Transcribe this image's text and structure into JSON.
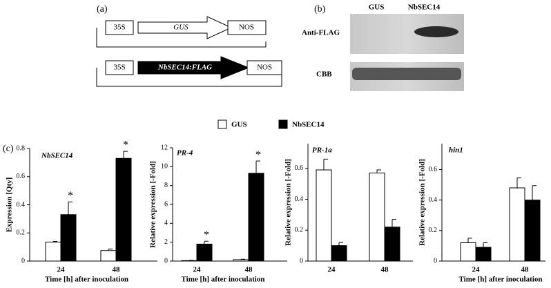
{
  "panel_a": {
    "label": "(a)",
    "constructs": [
      {
        "promoter": "35S",
        "gene": "GUS",
        "terminator": "NOS"
      },
      {
        "promoter": "35S",
        "gene": "NbSEC14:FLAG",
        "terminator": "NOS"
      }
    ]
  },
  "panel_b": {
    "label": "(b)",
    "lanes": [
      "GUS",
      "NbSEC14"
    ],
    "rows": [
      "Anti-FLAG",
      "CBB"
    ]
  },
  "panel_c": {
    "label": "(c)"
  },
  "chart_data": [
    {
      "type": "bar",
      "title": "NbSEC14",
      "ylabel": "Expression [Qty]",
      "xlabel": "Time [h] after inoculation",
      "categories": [
        "24",
        "48"
      ],
      "ylim": [
        0,
        0.8
      ],
      "yticks": [
        0,
        0.2,
        0.4,
        0.6,
        0.8
      ],
      "series": [
        {
          "name": "GUS",
          "color": "#ffffff",
          "values": [
            0.135,
            0.075
          ],
          "errors": [
            0.005,
            0.01
          ]
        },
        {
          "name": "NbSEC14",
          "color": "#000000",
          "values": [
            0.33,
            0.73
          ],
          "errors": [
            0.09,
            0.05
          ],
          "significance": [
            "*",
            "*"
          ]
        }
      ]
    },
    {
      "type": "bar",
      "title": "PR-4",
      "ylabel": "Relative expression [-Fold]",
      "xlabel": "Time [h] after inoculation",
      "categories": [
        "24",
        "48"
      ],
      "ylim": [
        0,
        12
      ],
      "yticks": [
        0,
        2,
        4,
        6,
        8,
        10,
        12
      ],
      "series": [
        {
          "color": "#ffffff",
          "values": [
            0.05,
            0.15
          ],
          "errors": [
            0.03,
            0.05
          ]
        },
        {
          "color": "#000000",
          "values": [
            1.8,
            9.3
          ],
          "errors": [
            0.3,
            1.3
          ],
          "significance": [
            "*",
            "*"
          ]
        }
      ]
    },
    {
      "type": "bar",
      "title": "PR-1a",
      "ylabel": "Relative expression [-Fold]",
      "categories": [
        "24",
        "48"
      ],
      "ylim": [
        0,
        0.76
      ],
      "yticks": [
        0,
        0.2,
        0.4,
        0.6
      ],
      "series": [
        {
          "color": "#ffffff",
          "values": [
            0.59,
            0.57
          ],
          "errors": [
            0.07,
            0.02
          ]
        },
        {
          "color": "#000000",
          "values": [
            0.1,
            0.22
          ],
          "errors": [
            0.02,
            0.05
          ]
        }
      ]
    },
    {
      "type": "bar",
      "title": "hin1",
      "ylabel": "Relative expression [-Fold]",
      "xlabel": "Time [h] after inoculation",
      "categories": [
        "24",
        "48"
      ],
      "ylim": [
        0,
        0.77
      ],
      "yticks": [
        0,
        0.2,
        0.4,
        0.6
      ],
      "series": [
        {
          "color": "#ffffff",
          "values": [
            0.12,
            0.48
          ],
          "errors": [
            0.03,
            0.065
          ]
        },
        {
          "color": "#000000",
          "values": [
            0.09,
            0.4
          ],
          "errors": [
            0.03,
            0.095
          ]
        }
      ]
    }
  ]
}
